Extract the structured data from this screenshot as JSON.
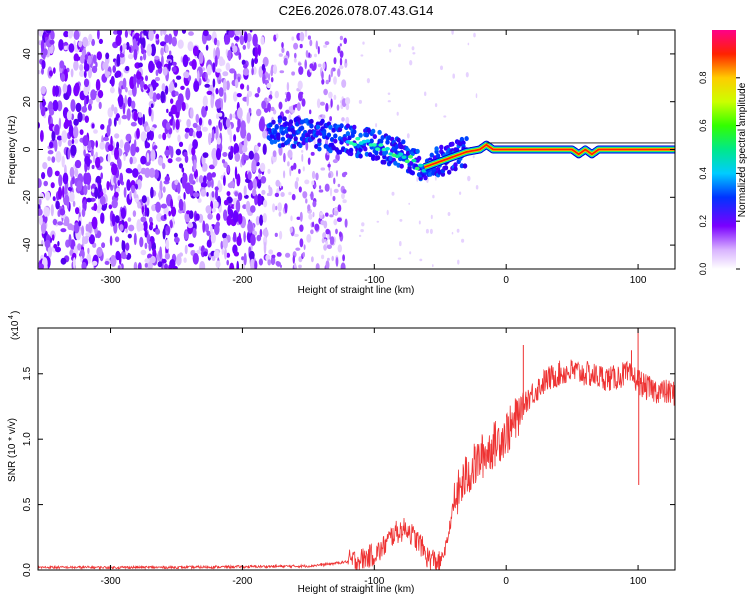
{
  "chart_data": [
    {
      "type": "heatmap",
      "title": "C2E6.2026.078.07.43.G14",
      "xlabel": "Height of straight line (km)",
      "ylabel": "Frequency (Hz)",
      "xlim": [
        -355,
        128
      ],
      "ylim": [
        -50,
        50
      ],
      "xticks": [
        "-300",
        "-200",
        "-100",
        "0",
        "100"
      ],
      "yticks": [
        "-40",
        "-20",
        "0",
        "20",
        "40"
      ],
      "colorbar": {
        "label": "Normalized spectral amplitude",
        "range": [
          0,
          1
        ],
        "ticks": [
          "0.0",
          "0.2",
          "0.4",
          "0.6",
          "0.8"
        ]
      },
      "ridge": {
        "x": [
          -180,
          -160,
          -140,
          -120,
          -100,
          -90,
          -80,
          -70,
          -65,
          -60,
          -55,
          -50,
          -40,
          -30,
          -20,
          -15,
          -10,
          0,
          20,
          40,
          50,
          55,
          60,
          65,
          70,
          80,
          90,
          100,
          110,
          128
        ],
        "y": [
          8,
          7,
          6,
          4,
          2,
          0,
          -2,
          -5,
          -8,
          -7,
          -6,
          -5,
          -3,
          -1,
          0,
          2,
          0,
          0,
          0,
          0,
          0,
          -2,
          0,
          -2,
          0,
          0,
          0,
          0,
          0,
          0
        ]
      }
    },
    {
      "type": "line",
      "xlabel": "Height of straight line (km)",
      "ylabel": "SNR (10 * v/v)",
      "yscale_label": "(x10",
      "yscale_exponent": "4",
      "xlim": [
        -355,
        128
      ],
      "ylim": [
        0,
        1.85
      ],
      "xticks": [
        "-300",
        "-200",
        "-100",
        "0",
        "100"
      ],
      "yticks": [
        "0.0",
        "0.5",
        "1.0",
        "1.5"
      ],
      "series": [
        {
          "name": "SNR",
          "color": "#ee3333",
          "x": [
            -355,
            -300,
            -250,
            -200,
            -150,
            -130,
            -110,
            -100,
            -95,
            -90,
            -85,
            -80,
            -75,
            -70,
            -65,
            -60,
            -55,
            -50,
            -45,
            -40,
            -35,
            -30,
            -25,
            -20,
            -15,
            -10,
            -5,
            0,
            5,
            10,
            15,
            20,
            25,
            30,
            40,
            50,
            60,
            70,
            80,
            90,
            95,
            100,
            105,
            110,
            120,
            128
          ],
          "y": [
            0.02,
            0.02,
            0.02,
            0.025,
            0.03,
            0.05,
            0.08,
            0.12,
            0.15,
            0.22,
            0.28,
            0.3,
            0.32,
            0.25,
            0.2,
            0.1,
            0.08,
            0.05,
            0.2,
            0.5,
            0.62,
            0.72,
            0.78,
            0.85,
            0.9,
            0.95,
            1.0,
            1.05,
            1.1,
            1.2,
            1.3,
            1.35,
            1.4,
            1.45,
            1.5,
            1.52,
            1.5,
            1.48,
            1.46,
            1.5,
            1.48,
            1.45,
            1.4,
            1.38,
            1.36,
            1.35
          ]
        }
      ],
      "spikes": [
        {
          "x": 13,
          "y": 1.72
        },
        {
          "x": 95,
          "y": 1.68
        },
        {
          "x": 100,
          "y": 1.85
        },
        {
          "x": 100.5,
          "y": 0.65
        }
      ]
    }
  ]
}
